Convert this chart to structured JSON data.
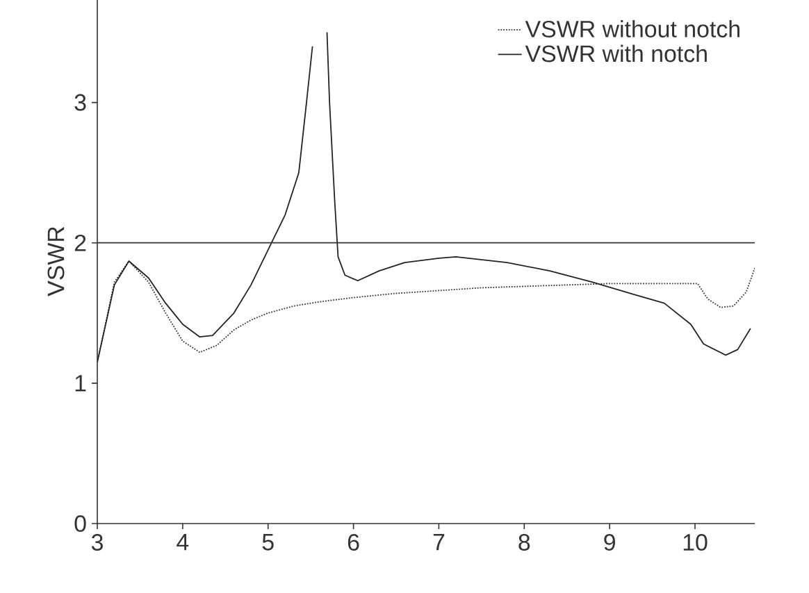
{
  "chart_data": {
    "type": "line",
    "ylabel": "VSWR",
    "xlim": [
      3,
      10.7
    ],
    "ylim": [
      0,
      3.74
    ],
    "xticks": [
      3,
      4,
      5,
      6,
      7,
      8,
      9,
      10
    ],
    "yticks": [
      0,
      1,
      2,
      3
    ],
    "grid": false,
    "legend": "top right",
    "marker": "none",
    "ref_lines": [
      {
        "axis": "y",
        "value": 2,
        "color": "#333333"
      }
    ],
    "series": [
      {
        "name": "VSWR without notch",
        "color": "#333333",
        "line_style": "dotted",
        "x": [
          3.0,
          3.2,
          3.37,
          3.6,
          3.8,
          4.0,
          4.2,
          4.4,
          4.6,
          4.8,
          5.0,
          5.3,
          5.6,
          6.0,
          6.5,
          7.0,
          7.5,
          8.0,
          8.5,
          9.0,
          10.03,
          10.15,
          10.3,
          10.45,
          10.6,
          10.7
        ],
        "values": [
          1.15,
          1.72,
          1.87,
          1.72,
          1.5,
          1.3,
          1.22,
          1.27,
          1.38,
          1.45,
          1.5,
          1.55,
          1.58,
          1.61,
          1.64,
          1.66,
          1.68,
          1.69,
          1.7,
          1.71,
          1.71,
          1.6,
          1.54,
          1.55,
          1.65,
          1.82
        ]
      },
      {
        "name": "VSWR with notch",
        "color": "#222222",
        "line_style": "solid",
        "x": [
          3.0,
          3.2,
          3.37,
          3.6,
          3.8,
          4.0,
          4.2,
          4.35,
          4.6,
          4.8,
          5.0,
          5.2,
          5.36,
          5.45,
          5.52,
          5.6,
          5.69,
          5.72,
          5.78,
          5.82,
          5.9,
          6.05,
          6.3,
          6.6,
          7.0,
          7.2,
          7.8,
          8.3,
          8.8,
          9.3,
          9.64,
          9.95,
          10.1,
          10.36,
          10.5,
          10.65
        ],
        "values": [
          1.15,
          1.7,
          1.87,
          1.75,
          1.57,
          1.42,
          1.33,
          1.34,
          1.5,
          1.7,
          1.95,
          2.2,
          2.5,
          3.0,
          3.4,
          null,
          3.5,
          3.0,
          2.3,
          1.9,
          1.77,
          1.73,
          1.8,
          1.86,
          1.89,
          1.9,
          1.86,
          1.8,
          1.72,
          1.63,
          1.57,
          1.42,
          1.28,
          1.2,
          1.24,
          1.39
        ]
      }
    ]
  }
}
